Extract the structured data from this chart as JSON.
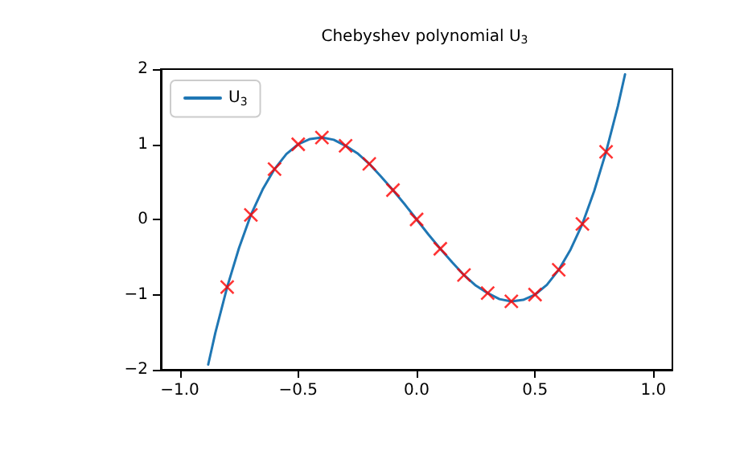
{
  "chart_data": {
    "type": "line",
    "title": "Chebyshev polynomial U$_{3}$",
    "series": [
      {
        "name": "U$_{3}$",
        "color": "#1f77b4",
        "marker": "none",
        "x": [
          -0.88,
          -0.85,
          -0.8,
          -0.75,
          -0.7,
          -0.65,
          -0.6,
          -0.55,
          -0.5,
          -0.45,
          -0.4,
          -0.35,
          -0.3,
          -0.25,
          -0.2,
          -0.15,
          -0.1,
          -0.05,
          0,
          0.05,
          0.1,
          0.15,
          0.2,
          0.25,
          0.3,
          0.35,
          0.4,
          0.45,
          0.5,
          0.55,
          0.6,
          0.65,
          0.7,
          0.75,
          0.8,
          0.85,
          0.88
        ],
        "values": [
          -1.93,
          -1.51,
          -0.9,
          -0.38,
          0.06,
          0.4,
          0.67,
          0.87,
          1,
          1.07,
          1.09,
          1.06,
          0.98,
          0.88,
          0.74,
          0.57,
          0.39,
          0.2,
          0,
          -0.2,
          -0.39,
          -0.57,
          -0.74,
          -0.88,
          -0.98,
          -1.06,
          -1.09,
          -1.07,
          -1,
          -0.87,
          -0.67,
          -0.4,
          -0.06,
          0.38,
          0.9,
          1.51,
          1.93
        ]
      },
      {
        "type": "scatter",
        "color": "#ff0000",
        "marker": "cross",
        "x": [
          -0.8,
          -0.7,
          -0.6,
          -0.5,
          -0.4,
          -0.3,
          -0.2,
          -0.1,
          0,
          0.1,
          0.2,
          0.3,
          0.4,
          0.5,
          0.6,
          0.7,
          0.8
        ],
        "values": [
          -0.9,
          0.06,
          0.67,
          1,
          1.09,
          0.98,
          0.74,
          0.39,
          0,
          -0.39,
          -0.74,
          -0.98,
          -1.09,
          -1,
          -0.67,
          -0.06,
          0.9
        ]
      }
    ],
    "xlim": [
      -1.08,
      1.08
    ],
    "xticks": [
      {
        "value": -1,
        "label": "−1.0"
      },
      {
        "value": -0.5,
        "label": "−0.5"
      },
      {
        "value": 0,
        "label": "0.0"
      },
      {
        "value": 0.5,
        "label": "0.5"
      },
      {
        "value": 1,
        "label": "1.0"
      }
    ],
    "ylim": [
      -2,
      2
    ],
    "yticks": [
      {
        "value": -2,
        "label": "−2"
      },
      {
        "value": -1,
        "label": "−1"
      },
      0,
      1,
      2
    ],
    "grid": false,
    "legend": "top left"
  }
}
